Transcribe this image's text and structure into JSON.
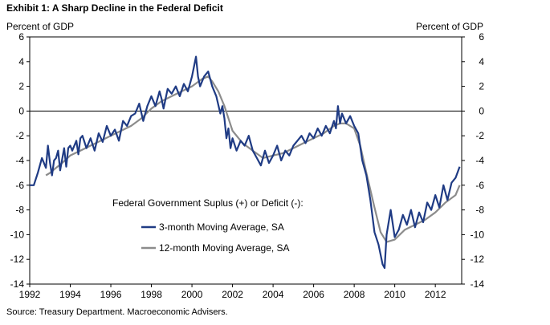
{
  "chart_data": {
    "type": "line",
    "title": "Exhibit 1: A Sharp Decline in the Federal Deficit",
    "source": "Source: Treasury Department. Macroeconomic Advisers.",
    "ylabel_left": "Percent of GDP",
    "ylabel_right": "Percent of GDP",
    "xlim": [
      1992,
      2013.3
    ],
    "ylim": [
      -14,
      6
    ],
    "x_ticks": [
      "1992",
      "1994",
      "1996",
      "1998",
      "2000",
      "2002",
      "2004",
      "2006",
      "2008",
      "2010",
      "2012"
    ],
    "y_ticks": [
      "6",
      "4",
      "2",
      "0",
      "-2",
      "-4",
      "-6",
      "-8",
      "-10",
      "-12",
      "-14"
    ],
    "legend_title": "Federal Government Suplus (+) or Deficit (-):",
    "grid": false,
    "zero_line": true,
    "series": [
      {
        "name": "3-month Moving Average, SA",
        "color": "#1f3b84",
        "x": [
          1992.0,
          1992.2,
          1992.4,
          1992.6,
          1992.8,
          1992.9,
          1993.0,
          1993.1,
          1993.2,
          1993.3,
          1993.4,
          1993.5,
          1993.7,
          1993.8,
          1993.9,
          1994.0,
          1994.1,
          1994.3,
          1994.4,
          1994.5,
          1994.6,
          1994.8,
          1995.0,
          1995.2,
          1995.4,
          1995.6,
          1995.8,
          1996.0,
          1996.2,
          1996.4,
          1996.6,
          1996.8,
          1997.0,
          1997.2,
          1997.4,
          1997.6,
          1997.8,
          1998.0,
          1998.2,
          1998.4,
          1998.5,
          1998.6,
          1998.8,
          1999.0,
          1999.2,
          1999.4,
          1999.6,
          1999.8,
          2000.0,
          2000.1,
          2000.2,
          2000.3,
          2000.4,
          2000.6,
          2000.8,
          2001.0,
          2001.2,
          2001.4,
          2001.5,
          2001.6,
          2001.7,
          2001.8,
          2001.9,
          2002.0,
          2002.2,
          2002.4,
          2002.6,
          2002.8,
          2003.0,
          2003.2,
          2003.4,
          2003.6,
          2003.8,
          2004.0,
          2004.2,
          2004.4,
          2004.6,
          2004.8,
          2005.0,
          2005.2,
          2005.4,
          2005.6,
          2005.8,
          2006.0,
          2006.2,
          2006.4,
          2006.6,
          2006.8,
          2007.0,
          2007.1,
          2007.2,
          2007.3,
          2007.4,
          2007.6,
          2007.8,
          2008.0,
          2008.2,
          2008.4,
          2008.6,
          2008.8,
          2009.0,
          2009.2,
          2009.4,
          2009.5,
          2009.6,
          2009.8,
          2010.0,
          2010.2,
          2010.4,
          2010.6,
          2010.8,
          2011.0,
          2011.2,
          2011.4,
          2011.6,
          2011.8,
          2012.0,
          2012.2,
          2012.4,
          2012.6,
          2012.8,
          2013.0,
          2013.2
        ],
        "y": [
          -6.0,
          -6.0,
          -5.0,
          -3.8,
          -4.6,
          -2.8,
          -4.2,
          -5.2,
          -4.0,
          -3.8,
          -3.2,
          -4.8,
          -3.0,
          -4.5,
          -3.0,
          -2.8,
          -3.2,
          -2.4,
          -3.5,
          -2.2,
          -2.0,
          -3.0,
          -2.2,
          -3.2,
          -1.8,
          -2.5,
          -1.2,
          -2.0,
          -1.5,
          -2.4,
          -0.8,
          -1.2,
          -0.4,
          -0.2,
          0.6,
          -0.8,
          0.4,
          1.2,
          0.4,
          1.6,
          1.0,
          0.2,
          1.8,
          1.4,
          2.0,
          1.2,
          2.2,
          1.6,
          2.8,
          3.6,
          4.4,
          2.8,
          2.0,
          2.8,
          3.2,
          2.0,
          1.2,
          -0.2,
          0.4,
          -0.6,
          -2.2,
          -1.4,
          -3.0,
          -2.2,
          -3.2,
          -2.4,
          -2.8,
          -2.0,
          -3.2,
          -3.8,
          -4.4,
          -3.2,
          -4.2,
          -3.6,
          -2.8,
          -4.0,
          -3.2,
          -3.6,
          -2.8,
          -2.4,
          -2.0,
          -2.6,
          -1.8,
          -2.2,
          -1.4,
          -2.0,
          -1.2,
          -1.8,
          -0.8,
          -1.4,
          0.4,
          -1.0,
          -0.2,
          -1.0,
          -0.4,
          -1.2,
          -1.8,
          -4.0,
          -5.2,
          -7.2,
          -9.8,
          -10.8,
          -12.4,
          -12.7,
          -10.0,
          -8.0,
          -10.2,
          -9.6,
          -8.4,
          -9.2,
          -8.0,
          -9.4,
          -8.2,
          -9.0,
          -7.4,
          -8.0,
          -6.8,
          -7.8,
          -6.0,
          -7.2,
          -5.8,
          -5.4,
          -4.5
        ]
      },
      {
        "name": "12-month Moving Average, SA",
        "color": "#8c8c8c",
        "x": [
          1992.8,
          1993.0,
          1993.3,
          1993.6,
          1994.0,
          1994.5,
          1995.0,
          1995.5,
          1996.0,
          1996.5,
          1997.0,
          1997.5,
          1998.0,
          1998.5,
          1999.0,
          1999.5,
          2000.0,
          2000.5,
          2000.8,
          2001.0,
          2001.3,
          2001.6,
          2002.0,
          2002.5,
          2003.0,
          2003.5,
          2004.0,
          2004.5,
          2005.0,
          2005.5,
          2006.0,
          2006.5,
          2007.0,
          2007.3,
          2007.6,
          2008.0,
          2008.3,
          2008.6,
          2009.0,
          2009.3,
          2009.6,
          2010.0,
          2010.5,
          2011.0,
          2011.5,
          2012.0,
          2012.5,
          2013.0,
          2013.2
        ],
        "y": [
          -5.2,
          -5.0,
          -4.6,
          -4.2,
          -3.6,
          -3.2,
          -2.8,
          -2.4,
          -2.0,
          -1.6,
          -1.2,
          -0.6,
          0.2,
          0.8,
          1.2,
          1.6,
          2.0,
          2.6,
          2.8,
          2.4,
          1.6,
          0.4,
          -1.6,
          -2.6,
          -3.2,
          -3.8,
          -3.6,
          -3.4,
          -3.0,
          -2.6,
          -2.2,
          -1.8,
          -1.2,
          -1.0,
          -1.0,
          -1.4,
          -2.8,
          -5.0,
          -7.8,
          -9.8,
          -10.6,
          -10.4,
          -9.6,
          -9.2,
          -8.8,
          -8.2,
          -7.4,
          -6.8,
          -6.0
        ]
      }
    ]
  }
}
